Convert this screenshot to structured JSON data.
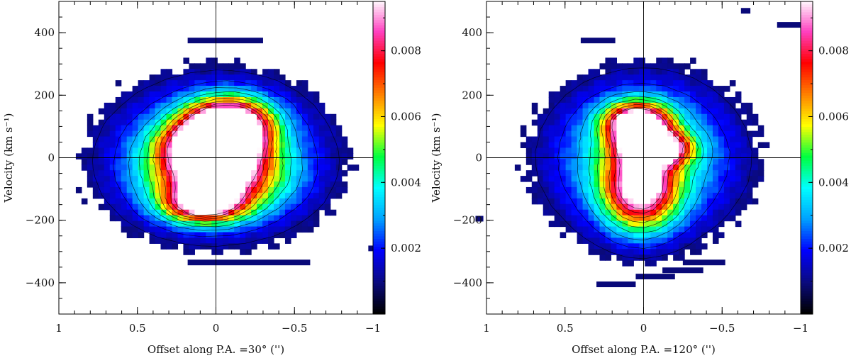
{
  "panels": [
    {
      "id": "left",
      "xlabel": "Offset along P.A. =30° ('')",
      "ylabel": "Velocity (km s⁻¹)",
      "xlim": [
        1,
        -1
      ],
      "ylim": [
        -500,
        500
      ],
      "xticks": [
        {
          "v": 1,
          "label": "1"
        },
        {
          "v": 0.5,
          "label": "0.5"
        },
        {
          "v": 0,
          "label": "0"
        },
        {
          "v": -0.5,
          "label": "−0.5"
        },
        {
          "v": -1,
          "label": "−1"
        }
      ],
      "yticks": [
        {
          "v": 400,
          "label": "400"
        },
        {
          "v": 200,
          "label": "200"
        },
        {
          "v": 0,
          "label": "0"
        },
        {
          "v": -200,
          "label": "−200"
        },
        {
          "v": -400,
          "label": "−400"
        }
      ],
      "colorbar": {
        "range": [
          0,
          0.0095
        ],
        "ticks": [
          {
            "v": 0.002,
            "label": "0.002"
          },
          {
            "v": 0.004,
            "label": "0.004"
          },
          {
            "v": 0.006,
            "label": "0.006"
          },
          {
            "v": 0.008,
            "label": "0.008"
          }
        ]
      }
    },
    {
      "id": "right",
      "xlabel": "Offset along P.A. =120° ('')",
      "ylabel": "Velocity (km s⁻¹)",
      "xlim": [
        1,
        -1
      ],
      "ylim": [
        -500,
        500
      ],
      "xticks": [
        {
          "v": 1,
          "label": "1"
        },
        {
          "v": 0.5,
          "label": "0.5"
        },
        {
          "v": 0,
          "label": "0"
        },
        {
          "v": -0.5,
          "label": "−0.5"
        },
        {
          "v": -1,
          "label": "−1"
        }
      ],
      "yticks": [
        {
          "v": 400,
          "label": "400"
        },
        {
          "v": 200,
          "label": "200"
        },
        {
          "v": 0,
          "label": "0"
        },
        {
          "v": -200,
          "label": "−200"
        },
        {
          "v": -400,
          "label": "−400"
        }
      ],
      "colorbar": {
        "range": [
          0,
          0.0095
        ],
        "ticks": [
          {
            "v": 0.002,
            "label": "0.002"
          },
          {
            "v": 0.004,
            "label": "0.004"
          },
          {
            "v": 0.006,
            "label": "0.006"
          },
          {
            "v": 0.008,
            "label": "0.008"
          }
        ]
      }
    }
  ],
  "chart_data": [
    {
      "type": "heatmap",
      "xlabel": "Offset along P.A. =30° ('')",
      "ylabel": "Velocity (km s⁻¹)",
      "xlim": [
        1,
        -1
      ],
      "ylim": [
        -500,
        500
      ],
      "color_range": [
        0,
        0.0095
      ],
      "colormap": [
        "#000000",
        "#0a0a80",
        "#0000ff",
        "#00a0ff",
        "#00ffff",
        "#00ff40",
        "#ffff00",
        "#ff8000",
        "#ff0000",
        "#ff40c0",
        "#ffffff"
      ],
      "components": [
        {
          "x": -0.08,
          "y": 112,
          "peak": 0.0093,
          "sx": 0.18,
          "sy": 55
        },
        {
          "x": 0.03,
          "y": 40,
          "peak": 0.0085,
          "sx": 0.2,
          "sy": 55
        },
        {
          "x": 0.0,
          "y": -60,
          "peak": 0.0072,
          "sx": 0.26,
          "sy": 75
        },
        {
          "x": 0.08,
          "y": -150,
          "peak": 0.0066,
          "sx": 0.17,
          "sy": 40
        },
        {
          "x": 0.0,
          "y": 0,
          "peak": 0.0042,
          "sx": 0.48,
          "sy": 170
        }
      ],
      "isolated_bars": [
        {
          "x0": 0.18,
          "x1": -0.3,
          "y": 375,
          "v": 0.0009
        },
        {
          "x0": 0.18,
          "x1": -0.6,
          "y": -335,
          "v": 0.0009
        },
        {
          "x0": -0.97,
          "x1": -1.0,
          "y": -290,
          "v": 0.0009
        }
      ]
    },
    {
      "type": "heatmap",
      "xlabel": "Offset along P.A. =120° ('')",
      "ylabel": "Velocity (km s⁻¹)",
      "xlim": [
        1,
        -1
      ],
      "ylim": [
        -500,
        500
      ],
      "color_range": [
        0,
        0.0095
      ],
      "colormap": [
        "#000000",
        "#0a0a80",
        "#0000ff",
        "#00a0ff",
        "#00ffff",
        "#00ff40",
        "#ffff00",
        "#ff8000",
        "#ff0000",
        "#ff40c0",
        "#ffffff"
      ],
      "components": [
        {
          "x": 0.04,
          "y": 110,
          "peak": 0.0093,
          "sx": 0.14,
          "sy": 45
        },
        {
          "x": -0.08,
          "y": 30,
          "peak": 0.0085,
          "sx": 0.14,
          "sy": 35
        },
        {
          "x": 0.02,
          "y": -100,
          "peak": 0.0075,
          "sx": 0.16,
          "sy": 90
        },
        {
          "x": 0.0,
          "y": 0,
          "peak": 0.0045,
          "sx": 0.42,
          "sy": 175
        }
      ],
      "isolated_bars": [
        {
          "x0": 0.4,
          "x1": 0.18,
          "y": 375,
          "v": 0.0009
        },
        {
          "x0": -0.62,
          "x1": -0.68,
          "y": 470,
          "v": 0.0009
        },
        {
          "x0": -0.85,
          "x1": -1.0,
          "y": 425,
          "v": 0.0009
        },
        {
          "x0": 1.07,
          "x1": 1.02,
          "y": -195,
          "v": 0.0009
        },
        {
          "x0": -0.25,
          "x1": -0.52,
          "y": -335,
          "v": 0.0009
        },
        {
          "x0": -0.12,
          "x1": -0.38,
          "y": -360,
          "v": 0.0009
        },
        {
          "x0": 0.05,
          "x1": -0.2,
          "y": -380,
          "v": 0.0009
        },
        {
          "x0": 0.3,
          "x1": 0.05,
          "y": -405,
          "v": 0.0009
        }
      ]
    }
  ]
}
